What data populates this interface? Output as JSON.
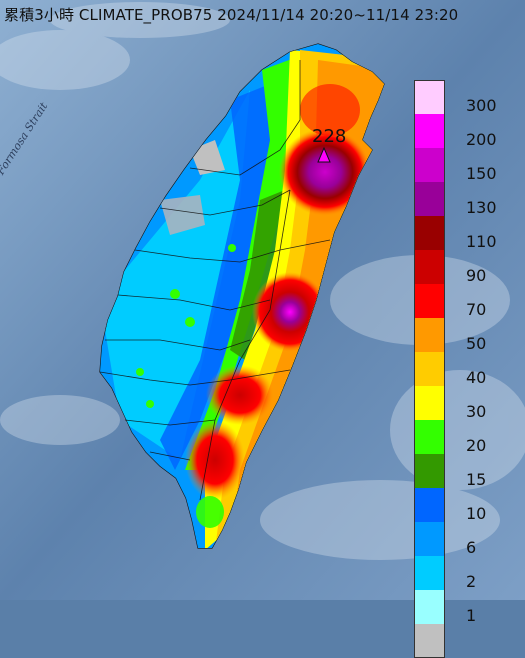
{
  "title": "累積3小時 CLIMATE_PROB75 2024/11/14 20:20~11/14 23:20",
  "sea_label": "Formosa Strait",
  "max_value_label": "228",
  "legend": [
    {
      "label": "300",
      "color": "#ffccff"
    },
    {
      "label": "200",
      "color": "#ff00ff"
    },
    {
      "label": "150",
      "color": "#cc00cc"
    },
    {
      "label": "130",
      "color": "#990099"
    },
    {
      "label": "110",
      "color": "#990000"
    },
    {
      "label": "90",
      "color": "#cc0000"
    },
    {
      "label": "70",
      "color": "#ff0000"
    },
    {
      "label": "50",
      "color": "#ff9900"
    },
    {
      "label": "40",
      "color": "#ffcc00"
    },
    {
      "label": "30",
      "color": "#ffff00"
    },
    {
      "label": "20",
      "color": "#33ff00"
    },
    {
      "label": "15",
      "color": "#339900"
    },
    {
      "label": "10",
      "color": "#0066ff"
    },
    {
      "label": "6",
      "color": "#0099ff"
    },
    {
      "label": "2",
      "color": "#00ccff"
    },
    {
      "label": "1",
      "color": "#99ffff"
    },
    {
      "label": "",
      "color": "#c0c0c0"
    }
  ]
}
